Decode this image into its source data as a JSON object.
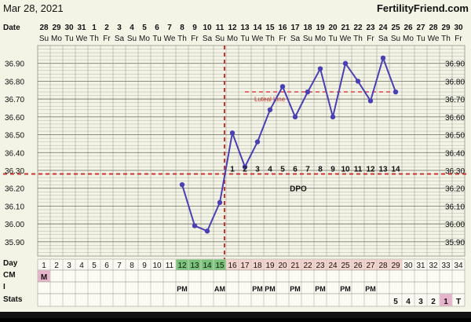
{
  "header": {
    "chart_date": "Mar 28, 2021",
    "site": "FertilityFriend.com"
  },
  "row_labels": {
    "date": "Date",
    "day": "Day",
    "cm": "CM",
    "i": "I",
    "stats": "Stats"
  },
  "date_numbers": [
    "28",
    "29",
    "30",
    "31",
    "1",
    "2",
    "3",
    "4",
    "5",
    "6",
    "7",
    "8",
    "9",
    "10",
    "11",
    "12",
    "13",
    "14",
    "15",
    "16",
    "17",
    "18",
    "19",
    "20",
    "21",
    "22",
    "23",
    "24",
    "25",
    "26",
    "27",
    "28",
    "29",
    "30"
  ],
  "weekdays": [
    "Su",
    "Mo",
    "Tu",
    "We",
    "Th",
    "Fr",
    "Sa",
    "Su",
    "Mo",
    "Tu",
    "We",
    "Th",
    "Fr",
    "Sa",
    "Su",
    "Mo",
    "Tu",
    "We",
    "Th",
    "Fr",
    "Sa",
    "Su",
    "Mo",
    "Tu",
    "We",
    "Th",
    "Fr",
    "Sa",
    "Su",
    "Mo",
    "Tu",
    "We",
    "Th",
    "Fr"
  ],
  "cycle_days": [
    "1",
    "2",
    "3",
    "4",
    "5",
    "6",
    "7",
    "8",
    "9",
    "10",
    "11",
    "12",
    "13",
    "14",
    "15",
    "16",
    "17",
    "18",
    "19",
    "20",
    "21",
    "22",
    "23",
    "24",
    "25",
    "26",
    "27",
    "28",
    "29",
    "30",
    "31",
    "32",
    "33",
    "34"
  ],
  "cm_row": [
    "M",
    "",
    "",
    "",
    "",
    "",
    "",
    "",
    "",
    "",
    "",
    "",
    "",
    "",
    "",
    "",
    "",
    "",
    "",
    "",
    "",
    "",
    "",
    "",
    "",
    "",
    "",
    "",
    "",
    "",
    "",
    "",
    "",
    ""
  ],
  "intercourse_row": [
    "",
    "",
    "",
    "",
    "",
    "",
    "",
    "",
    "",
    "",
    "",
    "PM",
    "",
    "",
    "AM",
    "",
    "",
    "PM",
    "PM",
    "",
    "PM",
    "",
    "PM",
    "",
    "PM",
    "",
    "PM",
    "",
    "",
    "",
    "",
    "",
    "",
    ""
  ],
  "stats_row": [
    "",
    "",
    "",
    "",
    "",
    "",
    "",
    "",
    "",
    "",
    "",
    "",
    "",
    "",
    "",
    "",
    "",
    "",
    "",
    "",
    "",
    "",
    "",
    "",
    "",
    "",
    "",
    "",
    "5",
    "4",
    "3",
    "2",
    "1",
    "T"
  ],
  "colors": {
    "temp_line": "#4a3fb4",
    "coverline": "#c8342e",
    "fertile_day": "#7ac47a",
    "luteal_day": "#f4d3cc",
    "menses": "#e7b2cc",
    "chart_bg": "#f3f4e6",
    "grid": "#a3a39a"
  },
  "chart_data": {
    "type": "line",
    "ylim": [
      35.82,
      37.0
    ],
    "y_ticks": [
      "35.90",
      "36.00",
      "36.10",
      "36.20",
      "36.30",
      "36.40",
      "36.50",
      "36.60",
      "36.70",
      "36.80",
      "36.90"
    ],
    "coverline": 36.28,
    "ovulation_day": 15,
    "luteal_line_label": "Luteal Line",
    "luteal_line_value": 36.74,
    "dpo_label": "DPO",
    "series": [
      {
        "cycle_day": [
          12,
          13,
          14,
          15,
          16,
          17,
          18,
          19,
          20,
          21,
          22,
          23,
          24,
          25,
          26,
          27,
          28,
          29
        ],
        "temps": [
          36.22,
          35.99,
          35.96,
          36.12,
          36.51,
          36.32,
          36.46,
          36.64,
          36.77,
          36.6,
          36.74,
          36.87,
          36.6,
          36.9,
          36.8,
          36.69,
          36.93,
          36.74
        ],
        "dpo": [
          "",
          "",
          "",
          "",
          "1",
          "2",
          "3",
          "4",
          "5",
          "6",
          "7",
          "8",
          "9",
          "10",
          "11",
          "12",
          "13",
          "14"
        ]
      }
    ]
  }
}
